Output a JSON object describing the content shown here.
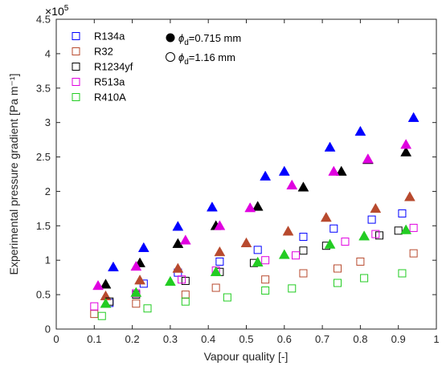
{
  "chart_data": {
    "type": "scatter",
    "xlabel": "Vapour quality [-]",
    "ylabel": "Experimental pressure gradient [Pa  m⁻¹]",
    "y_multiplier": "×10",
    "y_multiplier_exp": "5",
    "xlim": [
      0,
      1
    ],
    "ylim": [
      0,
      4.5
    ],
    "x_ticks": [
      "0",
      "0.1",
      "0.2",
      "0.3",
      "0.4",
      "0.5",
      "0.6",
      "0.7",
      "0.8",
      "0.9",
      "1"
    ],
    "y_ticks": [
      "0",
      "0.5",
      "1",
      "1.5",
      "2",
      "2.5",
      "3",
      "3.5",
      "4",
      "4.5"
    ],
    "grid": false,
    "legend_position": "top-left",
    "diameter_legend": [
      {
        "symbol": "filled",
        "prefix": "ϕ",
        "sub": "d",
        "value": "=0.715 mm"
      },
      {
        "symbol": "open",
        "prefix": "ϕ",
        "sub": "d",
        "value": "=1.16 mm"
      }
    ],
    "series": [
      {
        "name": "R134a",
        "color": "#0000ff",
        "filled_triangles": [
          [
            0.15,
            0.9
          ],
          [
            0.23,
            1.18
          ],
          [
            0.32,
            1.49
          ],
          [
            0.41,
            1.77
          ],
          [
            0.55,
            2.22
          ],
          [
            0.6,
            2.29
          ],
          [
            0.72,
            2.64
          ],
          [
            0.8,
            2.87
          ],
          [
            0.94,
            3.07
          ]
        ],
        "open_squares": [
          [
            0.14,
            0.38
          ],
          [
            0.23,
            0.66
          ],
          [
            0.32,
            0.82
          ],
          [
            0.43,
            0.98
          ],
          [
            0.53,
            1.15
          ],
          [
            0.65,
            1.34
          ],
          [
            0.73,
            1.46
          ],
          [
            0.83,
            1.59
          ],
          [
            0.91,
            1.68
          ]
        ]
      },
      {
        "name": "R32",
        "color": "#b84a2e",
        "filled_triangles": [
          [
            0.13,
            0.48
          ],
          [
            0.22,
            0.71
          ],
          [
            0.32,
            0.88
          ],
          [
            0.43,
            1.12
          ],
          [
            0.5,
            1.25
          ],
          [
            0.61,
            1.42
          ],
          [
            0.71,
            1.62
          ],
          [
            0.84,
            1.75
          ],
          [
            0.93,
            1.92
          ]
        ],
        "open_squares": [
          [
            0.1,
            0.22
          ],
          [
            0.21,
            0.37
          ],
          [
            0.34,
            0.5
          ],
          [
            0.42,
            0.6
          ],
          [
            0.55,
            0.72
          ],
          [
            0.65,
            0.81
          ],
          [
            0.74,
            0.88
          ],
          [
            0.8,
            0.98
          ],
          [
            0.94,
            1.1
          ]
        ]
      },
      {
        "name": "R1234yf",
        "color": "#000000",
        "filled_triangles": [
          [
            0.13,
            0.65
          ],
          [
            0.22,
            0.96
          ],
          [
            0.32,
            1.24
          ],
          [
            0.42,
            1.5
          ],
          [
            0.53,
            1.78
          ],
          [
            0.65,
            2.06
          ],
          [
            0.75,
            2.29
          ],
          [
            0.82,
            2.46
          ],
          [
            0.92,
            2.57
          ]
        ],
        "open_squares": [
          [
            0.14,
            0.4
          ],
          [
            0.21,
            0.5
          ],
          [
            0.34,
            0.7
          ],
          [
            0.43,
            0.83
          ],
          [
            0.52,
            0.96
          ],
          [
            0.65,
            1.14
          ],
          [
            0.71,
            1.21
          ],
          [
            0.85,
            1.36
          ],
          [
            0.9,
            1.43
          ]
        ]
      },
      {
        "name": "R513a",
        "color": "#e000e0",
        "filled_triangles": [
          [
            0.11,
            0.63
          ],
          [
            0.21,
            0.91
          ],
          [
            0.34,
            1.29
          ],
          [
            0.43,
            1.5
          ],
          [
            0.51,
            1.76
          ],
          [
            0.62,
            2.09
          ],
          [
            0.73,
            2.29
          ],
          [
            0.82,
            2.47
          ],
          [
            0.92,
            2.68
          ]
        ],
        "open_squares": [
          [
            0.1,
            0.33
          ],
          [
            0.21,
            0.52
          ],
          [
            0.33,
            0.72
          ],
          [
            0.42,
            0.85
          ],
          [
            0.55,
            1.0
          ],
          [
            0.63,
            1.07
          ],
          [
            0.76,
            1.27
          ],
          [
            0.84,
            1.38
          ],
          [
            0.94,
            1.47
          ]
        ]
      },
      {
        "name": "R410A",
        "color": "#22cc22",
        "filled_triangles": [
          [
            0.13,
            0.37
          ],
          [
            0.21,
            0.53
          ],
          [
            0.3,
            0.69
          ],
          [
            0.42,
            0.83
          ],
          [
            0.53,
            0.97
          ],
          [
            0.6,
            1.08
          ],
          [
            0.72,
            1.23
          ],
          [
            0.81,
            1.35
          ],
          [
            0.92,
            1.44
          ]
        ],
        "open_squares": [
          [
            0.12,
            0.19
          ],
          [
            0.24,
            0.3
          ],
          [
            0.34,
            0.4
          ],
          [
            0.45,
            0.46
          ],
          [
            0.55,
            0.56
          ],
          [
            0.62,
            0.59
          ],
          [
            0.74,
            0.67
          ],
          [
            0.81,
            0.74
          ],
          [
            0.91,
            0.81
          ]
        ]
      }
    ]
  }
}
